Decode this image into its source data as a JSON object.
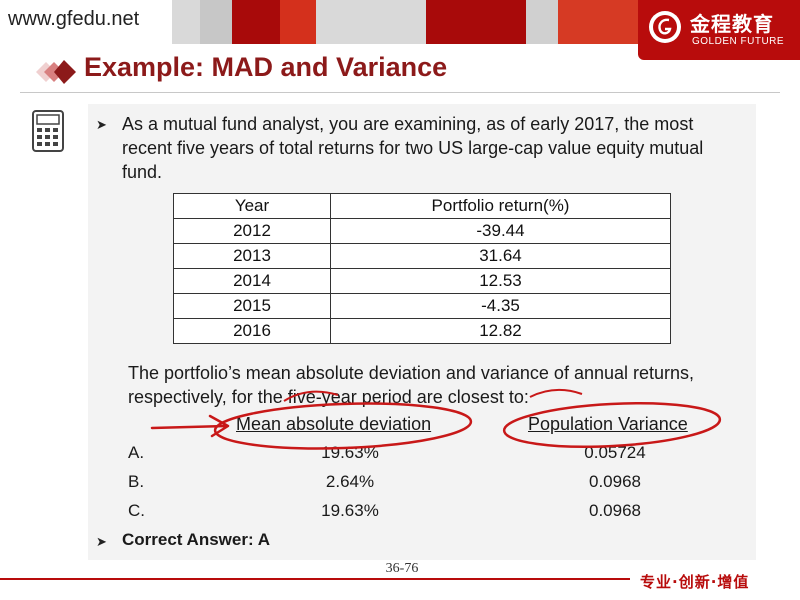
{
  "header": {
    "site": "www.gfedu.net",
    "brand_cn": "金程教育",
    "brand_en": "GOLDEN FUTURE",
    "colors": {
      "brand_red": "#b80c0c",
      "title_red": "#8c1a1a"
    }
  },
  "slide": {
    "title": "Example: MAD and Variance",
    "intro": "As a mutual fund analyst, you are examining, as of early 2017, the most recent five years of total returns for two US large-cap value equity mutual fund.",
    "table": {
      "columns": [
        "Year",
        "Portfolio return(%)"
      ],
      "rows": [
        [
          "2012",
          "-39.44"
        ],
        [
          "2013",
          "31.64"
        ],
        [
          "2014",
          "12.53"
        ],
        [
          "2015",
          "-4.35"
        ],
        [
          "2016",
          "12.82"
        ]
      ]
    },
    "question": "The portfolio’s mean absolute deviation and variance of annual returns, respectively, for the five-year period are closest to:",
    "options_header": {
      "mad": "Mean absolute deviation",
      "var": "Population Variance"
    },
    "options": [
      {
        "label": "A.",
        "mad": "19.63%",
        "var": "0.05724"
      },
      {
        "label": "B.",
        "mad": "2.64%",
        "var": "0.0968"
      },
      {
        "label": "C.",
        "mad": "19.63%",
        "var": "0.0968"
      }
    ],
    "answer": "Correct Answer: A"
  },
  "footer": {
    "page": "36-76",
    "slogan": "专业·创新·增值"
  },
  "icons": [
    "calculator-icon",
    "bullet-arrow-icon",
    "diamond-title-icon",
    "golden-future-logo-icon"
  ]
}
